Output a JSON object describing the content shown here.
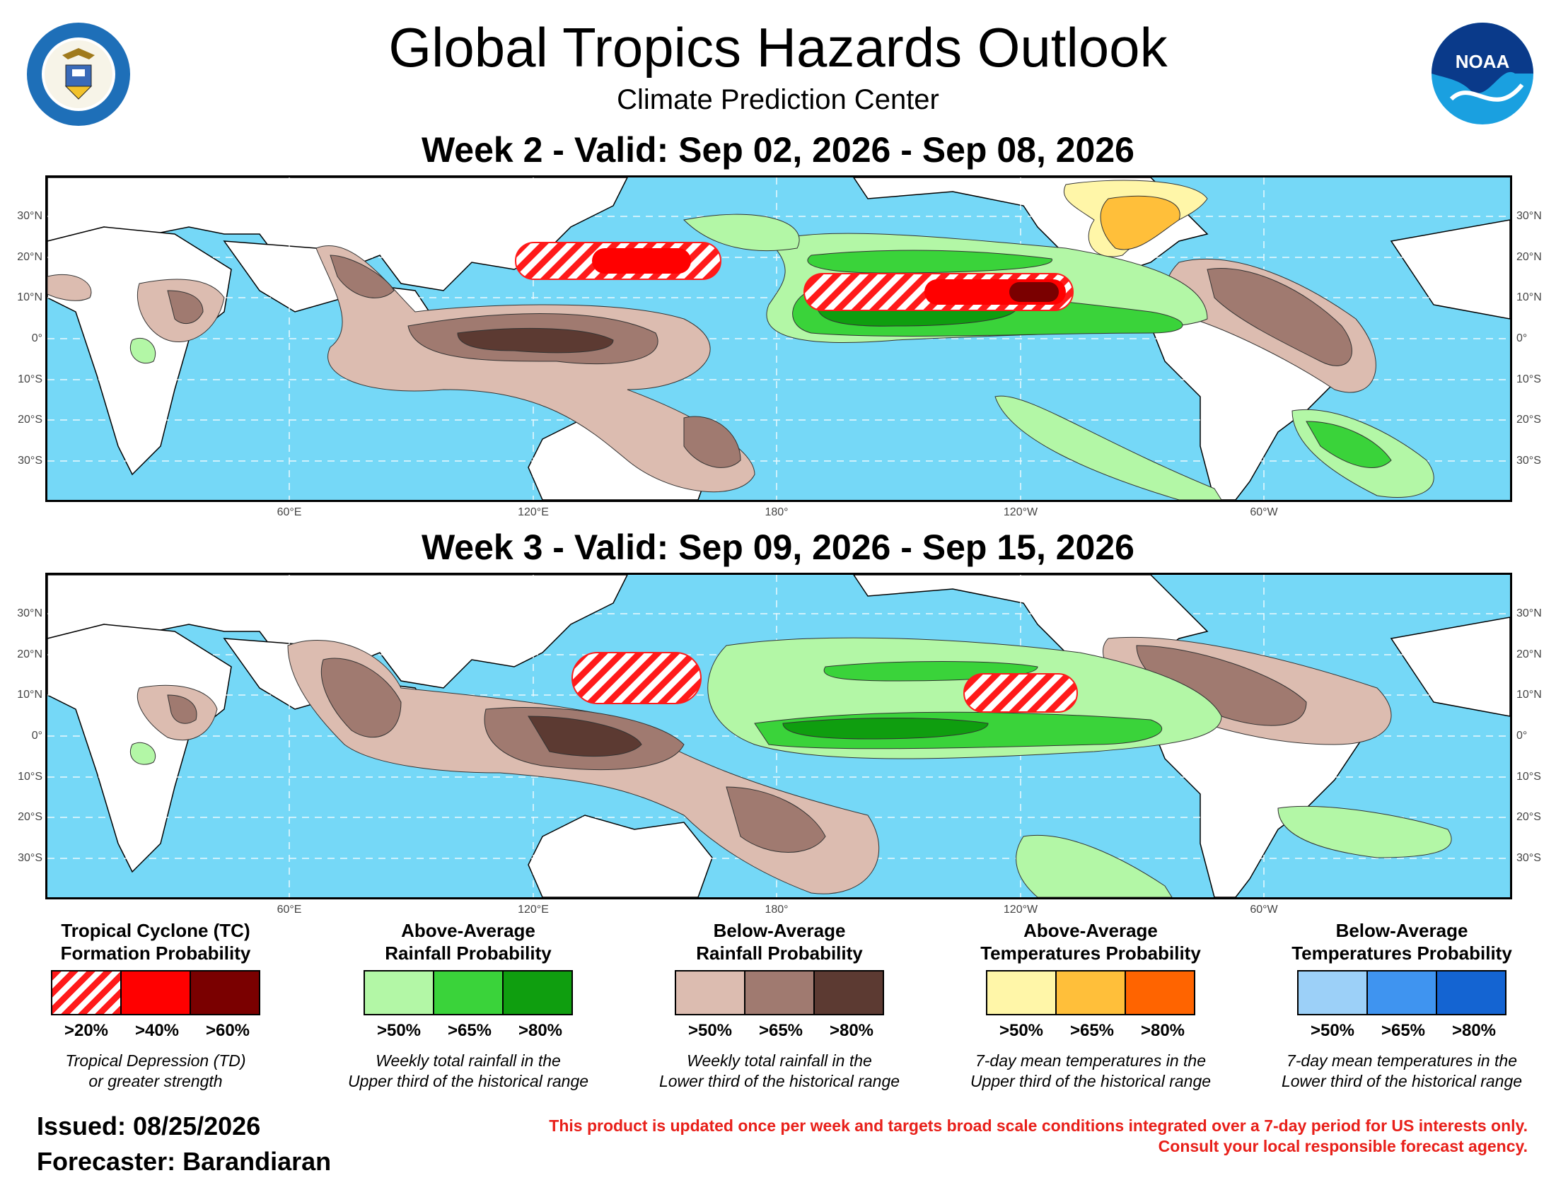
{
  "header": {
    "title": "Global Tropics Hazards Outlook",
    "subtitle": "Climate Prediction Center",
    "week2_title": "Week 2 - Valid: Sep 02, 2026 - Sep 08, 2026",
    "week3_title": "Week 3 - Valid: Sep 09, 2026 - Sep 15, 2026"
  },
  "logos": {
    "left": "department-of-commerce-seal",
    "right": "noaa-logo",
    "noaa_text": "NOAA"
  },
  "axes": {
    "lat_labels": [
      "30°N",
      "20°N",
      "10°N",
      "0°",
      "10°S",
      "20°S",
      "30°S"
    ],
    "lon_labels": [
      "60°E",
      "120°E",
      "180°",
      "120°W",
      "60°W"
    ]
  },
  "legend": [
    {
      "title_line1": "Tropical Cyclone (TC)",
      "title_line2": "Formation Probability",
      "thresholds": [
        ">20%",
        ">40%",
        ">60%"
      ],
      "colors": [
        "hatched-red",
        "#ff0000",
        "#7a0000"
      ],
      "desc_line1": "Tropical Depression (TD)",
      "desc_line2": "or greater strength"
    },
    {
      "title_line1": "Above-Average",
      "title_line2": "Rainfall Probability",
      "thresholds": [
        ">50%",
        ">65%",
        ">80%"
      ],
      "colors": [
        "#b3f7a6",
        "#3ad33a",
        "#0f9e0f"
      ],
      "desc_line1": "Weekly total rainfall in the",
      "desc_line2": "Upper third of the historical range"
    },
    {
      "title_line1": "Below-Average",
      "title_line2": "Rainfall Probability",
      "thresholds": [
        ">50%",
        ">65%",
        ">80%"
      ],
      "colors": [
        "#dcbcb0",
        "#a07a70",
        "#5c3a32"
      ],
      "desc_line1": "Weekly total rainfall in the",
      "desc_line2": "Lower third of the historical range"
    },
    {
      "title_line1": "Above-Average",
      "title_line2": "Temperatures Probability",
      "thresholds": [
        ">50%",
        ">65%",
        ">80%"
      ],
      "colors": [
        "#fff6a8",
        "#ffbf3a",
        "#ff6400"
      ],
      "desc_line1": "7-day mean temperatures in the",
      "desc_line2": "Upper third of the historical range"
    },
    {
      "title_line1": "Below-Average",
      "title_line2": "Temperatures Probability",
      "thresholds": [
        ">50%",
        ">65%",
        ">80%"
      ],
      "colors": [
        "#9cd0f8",
        "#3f94f0",
        "#1464d2"
      ],
      "desc_line1": "7-day mean temperatures in the",
      "desc_line2": "Lower third of the historical range"
    }
  ],
  "footer": {
    "issued": "Issued: 08/25/2026",
    "forecaster": "Forecaster: Barandiaran",
    "disclaimer_line1": "This product is updated once per week and targets broad scale conditions integrated over a 7-day period for US interests only.",
    "disclaimer_line2": "Consult your local responsible forecast agency."
  },
  "colors": {
    "ocean": "#75d8f7",
    "land": "#ffffff"
  }
}
